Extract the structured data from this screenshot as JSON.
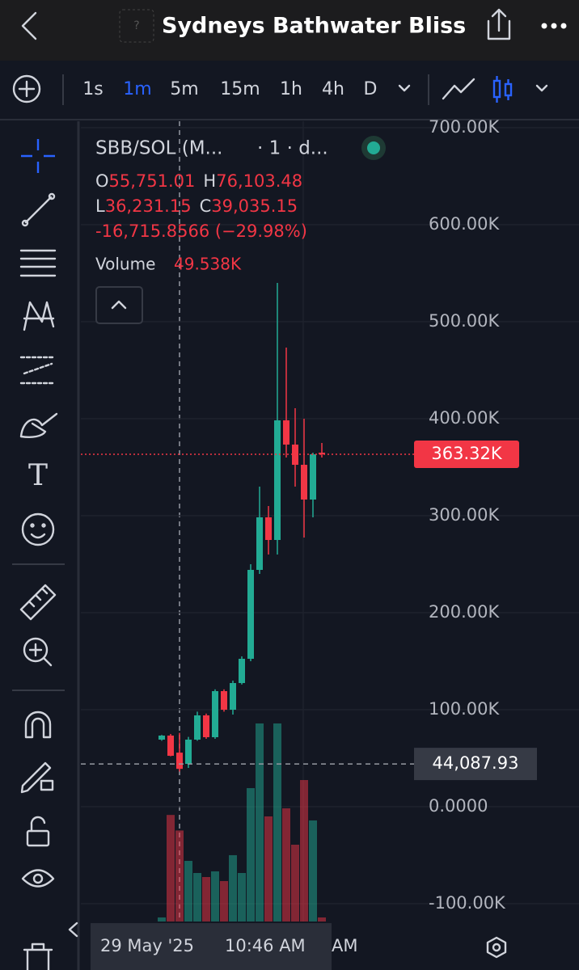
{
  "header": {
    "title": "Sydneys Bathwater Bliss"
  },
  "toolbar": {
    "timeframes": [
      "1s",
      "1m",
      "5m",
      "15m",
      "1h",
      "4h",
      "D"
    ],
    "active_timeframe": "1m"
  },
  "legend": {
    "symbol": "SBB/SOL (M...",
    "interval": "· 1 · d...",
    "ohlc": [
      {
        "key": "O",
        "value": "55,751.01"
      },
      {
        "key": "H",
        "value": "76,103.48"
      },
      {
        "key": "L",
        "value": "36,231.15"
      },
      {
        "key": "C",
        "value": "39,035.15"
      }
    ],
    "change": "-16,715.8566 (−29.98%)",
    "volume_label": "Volume",
    "volume_value": "49.538K"
  },
  "chart_data": {
    "type": "candlestick",
    "up_color": "#22ab94",
    "down_color": "#f23645",
    "open": [
      69167,
      73333,
      55751.01,
      44167,
      69167,
      94167,
      71667,
      119167,
      100000,
      127500,
      152500,
      244167,
      298333,
      275000,
      398333,
      373333,
      352500,
      316667,
      365000
    ],
    "high": [
      74000,
      75000,
      76103.48,
      72000,
      98000,
      96000,
      121000,
      121000,
      130000,
      155000,
      250000,
      330000,
      310000,
      540000,
      473333,
      410833,
      400000,
      365000,
      375000
    ],
    "low": [
      68000,
      52000,
      36231.15,
      40000,
      68000,
      70000,
      70000,
      98000,
      95000,
      126000,
      150000,
      240000,
      260000,
      260000,
      360000,
      330000,
      277500,
      298333,
      360000
    ],
    "close": [
      73333,
      52500,
      39035.15,
      69167,
      94167,
      71667,
      119167,
      100000,
      127500,
      152500,
      244167,
      298333,
      275000,
      398333,
      373333,
      352500,
      316667,
      363320,
      363320
    ],
    "volume": [
      2200,
      58000,
      49538,
      33000,
      26400,
      24200,
      27300,
      22000,
      36100,
      26400,
      72600,
      107800,
      57200,
      107800,
      61600,
      41800,
      77000,
      55000,
      2200
    ],
    "volume_ylim": [
      0,
      132000
    ],
    "ylim": [
      -120000,
      710000
    ],
    "yticks": [
      {
        "value": 700000,
        "label": "700.00K"
      },
      {
        "value": 600000,
        "label": "600.00K"
      },
      {
        "value": 500000,
        "label": "500.00K"
      },
      {
        "value": 400000,
        "label": "400.00K"
      },
      {
        "value": 300000,
        "label": "300.00K"
      },
      {
        "value": 200000,
        "label": "200.00K"
      },
      {
        "value": 100000,
        "label": "100.00K"
      },
      {
        "value": 0,
        "label": "0.0000"
      },
      {
        "value": -100000,
        "label": "-100.00K"
      }
    ],
    "last_price": {
      "value": 363320,
      "label": "363.32K"
    },
    "crosshair": {
      "value": 44087.93,
      "label": "44,087.93",
      "date_label": "29 May '25",
      "time_label": "10:46 AM"
    },
    "clipped_time_label": "AM"
  }
}
